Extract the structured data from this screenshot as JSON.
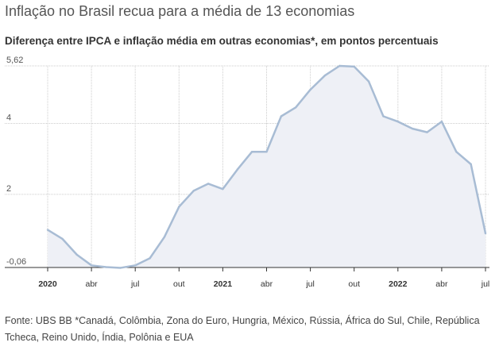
{
  "header": {
    "title": "Inflação no Brasil recua para a média de 13 economias",
    "subtitle": "Diferença entre IPCA e inflação média em outras economias*, em pontos percentuais"
  },
  "footnote": {
    "text": "Fonte: UBS BB *Canadá, Colômbia, Zona do Euro, Hungria, México, Rússia, África do Sul, Chile, República Tcheca, Reino Unido, Índia, Polônia e EUA"
  },
  "colors": {
    "line": "#a8bcd4",
    "area": "#eef0f6",
    "grid": "#cccccc",
    "baseline": "#333333"
  },
  "chart_data": {
    "type": "area",
    "title": "Inflação no Brasil recua para a média de 13 economias",
    "subtitle": "Diferença entre IPCA e inflação média em outras economias*, em pontos percentuais",
    "xlabel": "",
    "ylabel": "",
    "ylim": [
      -0.06,
      5.62
    ],
    "grid": true,
    "yticks": [
      {
        "value": 5.62,
        "label": "5,62"
      },
      {
        "value": 4,
        "label": "4"
      },
      {
        "value": 2,
        "label": "2"
      },
      {
        "value": -0.06,
        "label": "-0,06"
      }
    ],
    "xticks": [
      {
        "x": "2020-01",
        "label": "2020",
        "year": true
      },
      {
        "x": "2020-04",
        "label": "abr",
        "year": false
      },
      {
        "x": "2020-07",
        "label": "jul",
        "year": false
      },
      {
        "x": "2020-10",
        "label": "out",
        "year": false
      },
      {
        "x": "2021-01",
        "label": "2021",
        "year": true
      },
      {
        "x": "2021-04",
        "label": "abr",
        "year": false
      },
      {
        "x": "2021-07",
        "label": "jul",
        "year": false
      },
      {
        "x": "2021-10",
        "label": "out",
        "year": false
      },
      {
        "x": "2022-01",
        "label": "2022",
        "year": true
      },
      {
        "x": "2022-04",
        "label": "abr",
        "year": false
      },
      {
        "x": "2022-07",
        "label": "jul",
        "year": false
      }
    ],
    "series": [
      {
        "x": [
          "2020-01",
          "2020-02",
          "2020-03",
          "2020-04",
          "2020-05",
          "2020-06",
          "2020-07",
          "2020-08",
          "2020-09",
          "2020-10",
          "2020-11",
          "2020-12",
          "2021-01",
          "2021-02",
          "2021-03",
          "2021-04",
          "2021-05",
          "2021-06",
          "2021-07",
          "2021-08",
          "2021-09",
          "2021-10",
          "2021-11",
          "2021-12",
          "2022-01",
          "2022-02",
          "2022-03",
          "2022-04",
          "2022-05",
          "2022-06",
          "2022-07"
        ],
        "values": [
          1.0,
          0.75,
          0.3,
          0.0,
          -0.05,
          -0.07,
          0.0,
          0.2,
          0.8,
          1.65,
          2.1,
          2.3,
          2.15,
          2.7,
          3.2,
          3.2,
          4.2,
          4.45,
          4.95,
          5.35,
          5.62,
          5.6,
          5.18,
          4.2,
          4.05,
          3.85,
          3.75,
          4.05,
          3.2,
          2.85,
          0.9
        ]
      }
    ]
  }
}
